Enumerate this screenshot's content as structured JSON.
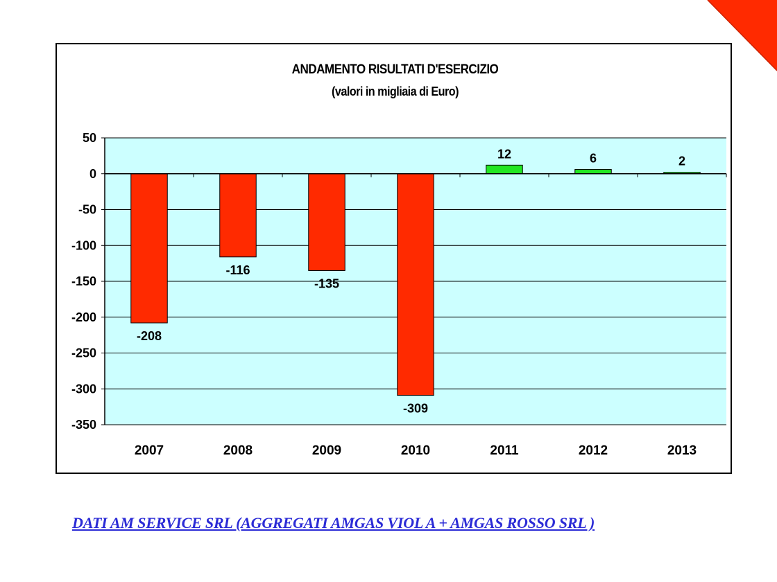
{
  "chart_data": {
    "type": "bar",
    "title": "ANDAMENTO RISULTATI D'ESERCIZIO",
    "subtitle": "(valori in migliaia di Euro)",
    "categories": [
      "2007",
      "2008",
      "2009",
      "2010",
      "2011",
      "2012",
      "2013"
    ],
    "values": [
      -208,
      -116,
      -135,
      -309,
      12,
      6,
      2
    ],
    "data_labels": [
      "-208",
      "-116",
      "-135",
      "-309",
      "12",
      "6",
      "2"
    ],
    "ylim": [
      -350,
      50
    ],
    "yticks": [
      50,
      0,
      -50,
      -100,
      -150,
      -200,
      -250,
      -300,
      -350
    ],
    "ytick_labels": [
      "50",
      "0",
      "-50",
      "-100",
      "-150",
      "-200",
      "-250",
      "-300",
      "-350"
    ],
    "grid": true,
    "legend": "none",
    "colors": {
      "negative": "#ff2a00",
      "positive": "#22e622",
      "plot_background": "#ccffff",
      "gridline": "#000000"
    }
  },
  "caption": "DATI AM SERVICE SRL (AGGREGATI AMGAS VIOL A + AMGAS ROSSO SRL )",
  "decoration": {
    "corner_color": "#ff2a00"
  }
}
